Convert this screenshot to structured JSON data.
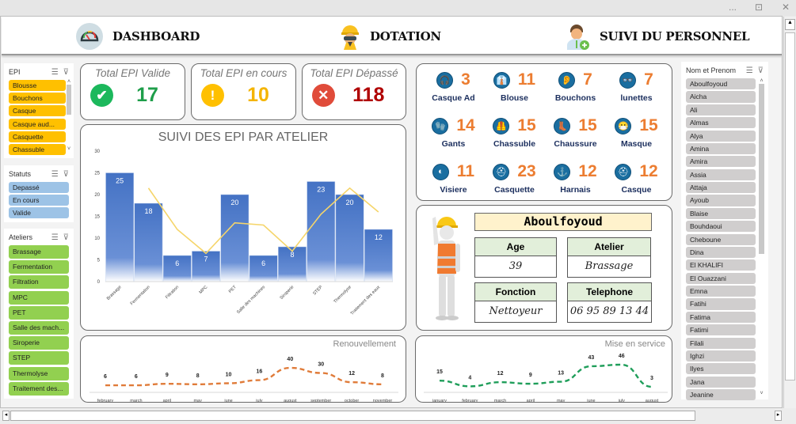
{
  "window": {
    "more": "...",
    "restore": "⊡",
    "close": "✕"
  },
  "header": {
    "nav": [
      {
        "label": "DASHBOARD",
        "icon": "gauge-icon"
      },
      {
        "label": "DOTATION",
        "icon": "worker-helmet-icon"
      },
      {
        "label": "SUIVI DU PERSONNEL",
        "icon": "add-user-icon"
      }
    ]
  },
  "slicers": {
    "epi": {
      "title": "EPI",
      "items": [
        "Blousse",
        "Bouchons",
        "Casque",
        "Casque aud...",
        "Casquette",
        "Chassuble"
      ],
      "color": "#ffc000"
    },
    "statuts": {
      "title": "Statuts",
      "items": [
        "Depassé",
        "En cours",
        "Valide"
      ],
      "color": "#9dc3e6"
    },
    "ateliers": {
      "title": "Ateliers",
      "items": [
        "Brassage",
        "Fermentation",
        "Filtration",
        "MPC",
        "PET",
        "Salle des mach...",
        "Siroperie",
        "STEP",
        "Thermolyse",
        "Traitement des..."
      ],
      "color": "#92d050"
    },
    "nom": {
      "title": "Nom et Prenom",
      "items": [
        "Aboulfoyoud",
        "Aicha",
        "Ali",
        "Almas",
        "Alya",
        "Amina",
        "Amira",
        "Assia",
        "Attaja",
        "Ayoub",
        "Blaise",
        "Bouhdaoui",
        "Cheboune",
        "Dina",
        "El KHALIFI",
        "El Ouazzani",
        "Emna",
        "Fatihi",
        "Fatima",
        "Fatimi",
        "Filali",
        "Ighzi",
        "Ilyes",
        "Jana",
        "Jeanine"
      ],
      "color": "#d0cece"
    }
  },
  "kpis": [
    {
      "title": "Total EPI Valide",
      "value": "17",
      "icon": "✔",
      "icon_bg": "#1cb85c",
      "color": "#1e9e4a"
    },
    {
      "title": "Total EPI en cours",
      "value": "10",
      "icon": "!",
      "icon_bg": "#ffc000",
      "color": "#f4b400"
    },
    {
      "title": "Total EPI Dépassé",
      "value": "118",
      "icon": "✕",
      "icon_bg": "#e04b3a",
      "color": "#b00000"
    }
  ],
  "epi_counts": [
    {
      "name": "Casque Ad",
      "count": "3",
      "icon": "🎧"
    },
    {
      "name": "Blouse",
      "count": "11",
      "icon": "👔"
    },
    {
      "name": "Bouchons",
      "count": "7",
      "icon": "👂"
    },
    {
      "name": "lunettes",
      "count": "7",
      "icon": "👓"
    },
    {
      "name": "Gants",
      "count": "14",
      "icon": "🧤"
    },
    {
      "name": "Chassuble",
      "count": "15",
      "icon": "🦺"
    },
    {
      "name": "Chaussure",
      "count": "15",
      "icon": "👢"
    },
    {
      "name": "Masque",
      "count": "15",
      "icon": "😷"
    },
    {
      "name": "Visiere",
      "count": "11",
      "icon": "◐"
    },
    {
      "name": "Casquette",
      "count": "23",
      "icon": "⛑"
    },
    {
      "name": "Harnais",
      "count": "12",
      "icon": "⚓"
    },
    {
      "name": "Casque",
      "count": "12",
      "icon": "⛑"
    }
  ],
  "employee": {
    "name": "Aboulfoyoud",
    "age_label": "Age",
    "age": "39",
    "atelier_label": "Atelier",
    "atelier": "Brassage",
    "fonction_label": "Fonction",
    "fonction": "Nettoyeur",
    "telephone_label": "Telephone",
    "telephone": "06 95 89 13 44"
  },
  "chart_data": [
    {
      "type": "bar",
      "title": "SUIVI DES EPI PAR ATELIER",
      "categories": [
        "Brassage",
        "Fermentation",
        "Filtration",
        "MPC",
        "PET",
        "Salle des machines",
        "Siroperie",
        "STEP",
        "Thermolyse",
        "Traitement des eaux"
      ],
      "values": [
        25,
        18,
        6,
        7,
        20,
        6,
        8,
        23,
        20,
        12
      ],
      "trendline": {
        "type": "moving_average",
        "period": 2,
        "values": [
          null,
          21.5,
          12,
          6.5,
          13.5,
          13,
          7,
          15.5,
          21.5,
          16
        ],
        "color": "#f5d56a"
      },
      "ylim": [
        0,
        30
      ],
      "yticks": [
        0,
        5,
        10,
        15,
        20,
        25,
        30
      ],
      "bar_color": "#4472c4"
    },
    {
      "type": "line",
      "title": "Renouvellement",
      "categories": [
        "february",
        "march",
        "april",
        "may",
        "june",
        "july",
        "august",
        "september",
        "october",
        "november"
      ],
      "values": [
        6,
        6,
        9,
        8,
        10,
        16,
        40,
        30,
        12,
        8
      ],
      "color": "#e07b39",
      "style": "dashed"
    },
    {
      "type": "line",
      "title": "Mise en service",
      "categories": [
        "january",
        "february",
        "march",
        "april",
        "may",
        "june",
        "july",
        "august"
      ],
      "values": [
        15,
        4,
        12,
        9,
        13,
        43,
        46,
        3
      ],
      "color": "#1f9e5a",
      "style": "dashed"
    }
  ]
}
